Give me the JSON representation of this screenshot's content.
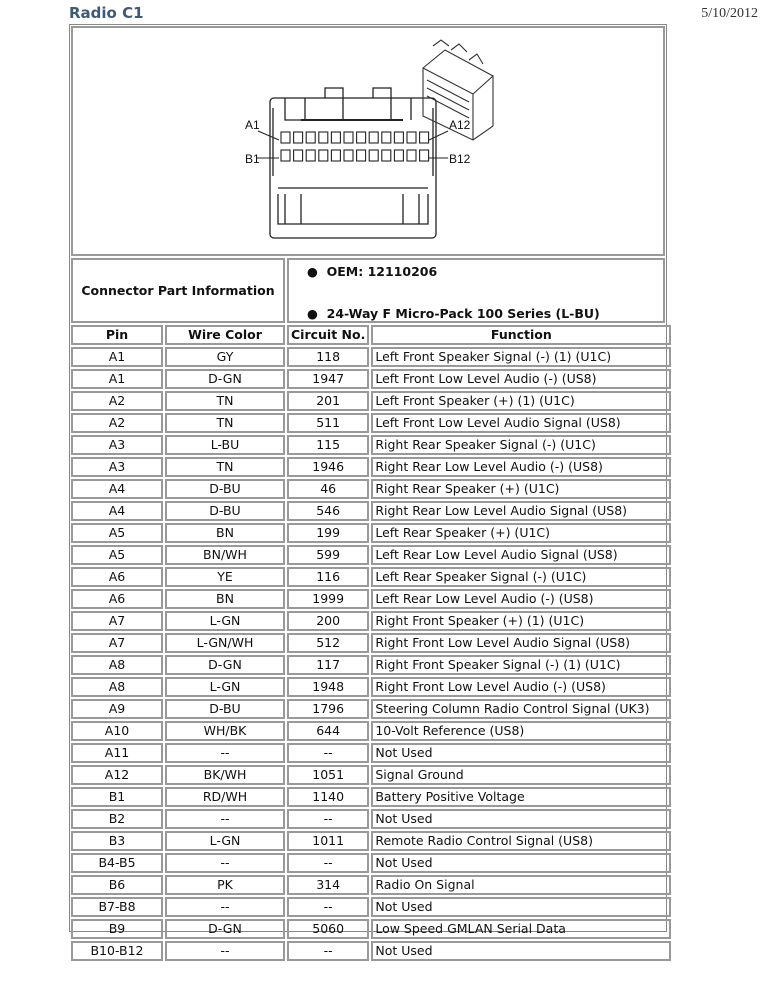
{
  "header": {
    "title": "Radio C1",
    "date": "5/10/2012"
  },
  "diagram": {
    "labels": {
      "a1": "A1",
      "a12": "A12",
      "b1": "B1",
      "b12": "B12"
    }
  },
  "connector_info": {
    "label": "Connector Part Information",
    "bullets": [
      "OEM: 12110206",
      "24-Way F Micro-Pack 100 Series (L-BU)"
    ]
  },
  "table": {
    "columns": [
      "Pin",
      "Wire Color",
      "Circuit No.",
      "Function"
    ],
    "rows": [
      [
        "A1",
        "GY",
        "118",
        "Left Front Speaker Signal (-) (1) (U1C)"
      ],
      [
        "A1",
        "D-GN",
        "1947",
        "Left Front Low Level Audio (-) (US8)"
      ],
      [
        "A2",
        "TN",
        "201",
        "Left Front Speaker (+) (1) (U1C)"
      ],
      [
        "A2",
        "TN",
        "511",
        "Left Front Low Level Audio Signal (US8)"
      ],
      [
        "A3",
        "L-BU",
        "115",
        "Right Rear Speaker Signal (-) (U1C)"
      ],
      [
        "A3",
        "TN",
        "1946",
        "Right Rear Low Level Audio (-) (US8)"
      ],
      [
        "A4",
        "D-BU",
        "46",
        "Right Rear Speaker (+) (U1C)"
      ],
      [
        "A4",
        "D-BU",
        "546",
        "Right Rear Low Level Audio Signal (US8)"
      ],
      [
        "A5",
        "BN",
        "199",
        "Left Rear Speaker (+) (U1C)"
      ],
      [
        "A5",
        "BN/WH",
        "599",
        "Left Rear Low Level Audio Signal (US8)"
      ],
      [
        "A6",
        "YE",
        "116",
        "Left Rear Speaker Signal (-) (U1C)"
      ],
      [
        "A6",
        "BN",
        "1999",
        "Left Rear Low Level Audio (-) (US8)"
      ],
      [
        "A7",
        "L-GN",
        "200",
        "Right Front Speaker (+) (1) (U1C)"
      ],
      [
        "A7",
        "L-GN/WH",
        "512",
        "Right Front Low Level Audio Signal (US8)"
      ],
      [
        "A8",
        "D-GN",
        "117",
        "Right Front Speaker Signal (-) (1) (U1C)"
      ],
      [
        "A8",
        "L-GN",
        "1948",
        "Right Front Low Level Audio (-) (US8)"
      ],
      [
        "A9",
        "D-BU",
        "1796",
        "Steering Column Radio Control Signal (UK3)"
      ],
      [
        "A10",
        "WH/BK",
        "644",
        "10-Volt Reference (US8)"
      ],
      [
        "A11",
        "--",
        "--",
        "Not Used"
      ],
      [
        "A12",
        "BK/WH",
        "1051",
        "Signal Ground"
      ],
      [
        "B1",
        "RD/WH",
        "1140",
        "Battery Positive Voltage"
      ],
      [
        "B2",
        "--",
        "--",
        "Not Used"
      ],
      [
        "B3",
        "L-GN",
        "1011",
        "Remote Radio Control Signal (US8)"
      ],
      [
        "B4-B5",
        "--",
        "--",
        "Not Used"
      ],
      [
        "B6",
        "PK",
        "314",
        "Radio On Signal"
      ],
      [
        "B7-B8",
        "--",
        "--",
        "Not Used"
      ],
      [
        "B9",
        "D-GN",
        "5060",
        "Low Speed GMLAN Serial Data"
      ],
      [
        "B10-B12",
        "--",
        "--",
        "Not Used"
      ]
    ]
  }
}
